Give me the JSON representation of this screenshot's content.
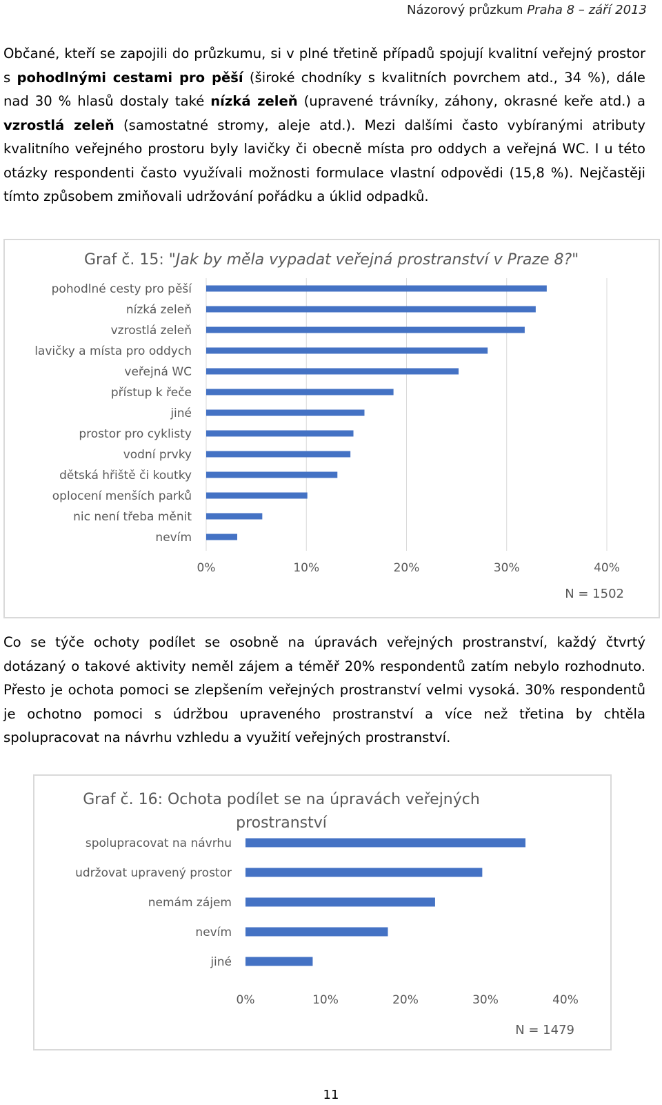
{
  "header": {
    "left_text": "Názorový průzkum ",
    "italic_text": "Praha 8 – září 2013"
  },
  "paragraph1": {
    "t1": "Občané, kteří se zapojili do průzkumu, si v plné třetině případů spojují kvalitní veřejný prostor s ",
    "b1": "pohodlnými cestami pro pěší",
    "t2": " (široké chodníky s kvalitních povrchem atd., 34 %), dále nad 30 % hlasů dostaly také ",
    "b2": "nízká zeleň",
    "t3": " (upravené trávníky, záhony, okrasné keře atd.) a ",
    "b3": "vzrostlá zeleň",
    "t4": " (samostatné stromy, aleje atd.). Mezi dalšími často vybíranými atributy kvalitního veřejného prostoru byly lavičky či obecně místa pro oddych a veřejná WC. I u této otázky respondenti často využívali možnosti formulace vlastní odpovědi (15,8 %). Nejčastěji tímto způsobem zmiňovali udržování pořádku a úklid odpadků."
  },
  "paragraph2": "Co se týče ochoty podílet se osobně na úpravách veřejných prostranství, každý čtvrtý dotázaný o takové aktivity neměl zájem a téměř 20% respondentů zatím nebylo rozhodnuto. Přesto je ochota pomoci se zlepšením veřejných prostranství velmi vysoká. 30% respondentů je ochotno pomoci s údržbou upraveného prostranství a více než třetina by chtěla spolupracovat na návrhu vzhledu a využití veřejných prostranství.",
  "page_number": "11",
  "colors": {
    "bar": "#4472c4",
    "grid": "#d9d9d9",
    "text": "#595959"
  },
  "chart_data": [
    {
      "type": "bar",
      "orientation": "horizontal",
      "title_prefix": "Graf č. 15: ",
      "title_italic": "\"Jak by měla vypadat veřejná prostranství v Praze 8?\"",
      "categories": [
        "pohodlné cesty pro pěší",
        "nízká zeleň",
        "vzrostlá zeleň",
        "lavičky a místa pro oddych",
        "veřejná WC",
        "přístup k řeče",
        "jiné",
        "prostor pro cyklisty",
        "vodní prvky",
        "dětská hřiště či koutky",
        "oplocení menších parků",
        "nic není třeba měnit",
        "nevím"
      ],
      "values": [
        34.0,
        32.9,
        31.8,
        28.1,
        25.2,
        18.7,
        15.8,
        14.7,
        14.4,
        13.1,
        10.1,
        5.6,
        3.1
      ],
      "ticks": [
        "0%",
        "10%",
        "20%",
        "30%",
        "40%"
      ],
      "xlim": [
        0,
        40
      ],
      "grid": true,
      "note": "N = 1502"
    },
    {
      "type": "bar",
      "orientation": "horizontal",
      "title_line1": "Graf č. 16: Ochota podílet se na úpravách veřejných",
      "title_line2": "prostranství",
      "categories": [
        "spolupracovat na návrhu",
        "udržovat upravený prostor",
        "nemám zájem",
        "nevím",
        "jiné"
      ],
      "values": [
        35.0,
        29.6,
        23.7,
        17.8,
        8.4
      ],
      "ticks": [
        "0%",
        "10%",
        "20%",
        "30%",
        "40%"
      ],
      "xlim": [
        0,
        40
      ],
      "grid": false,
      "note": "N = 1479"
    }
  ]
}
